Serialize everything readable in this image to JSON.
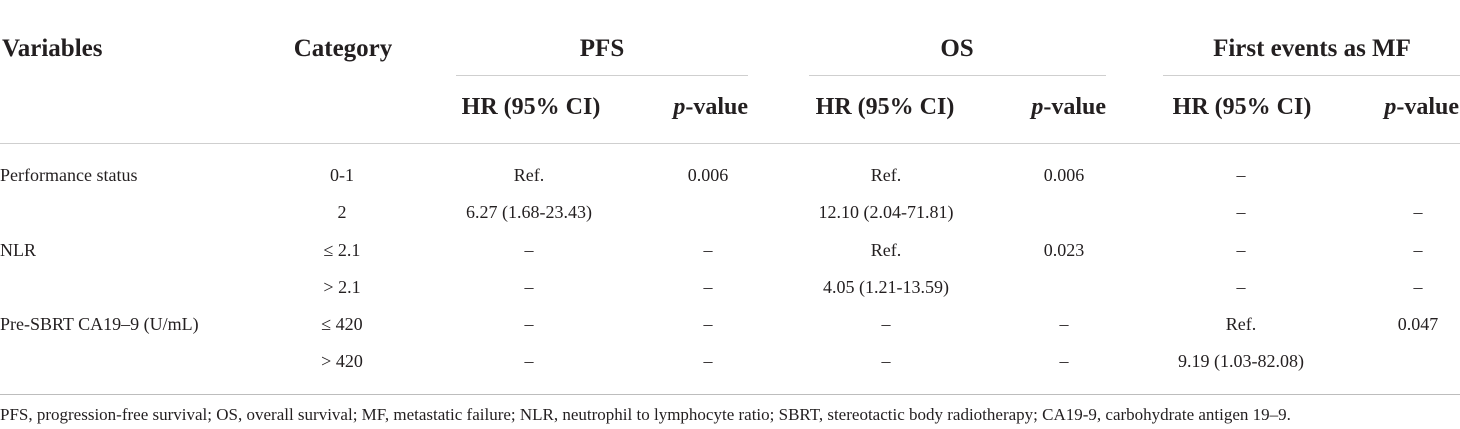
{
  "table": {
    "headers": {
      "variables": "Variables",
      "category": "Category",
      "pfs": "PFS",
      "os": "OS",
      "mf": "First events as MF"
    },
    "subheaders": {
      "hr": "HR (95% CI)",
      "p_italic": "p",
      "p_rest": "-value"
    },
    "rows": [
      {
        "variable": "Performance status",
        "category": "0-1",
        "pfs_hr": "Ref.",
        "pfs_p": "0.006",
        "os_hr": "Ref.",
        "os_p": "0.006",
        "mf_hr": "–",
        "mf_p": ""
      },
      {
        "variable": "",
        "category": "2",
        "pfs_hr": "6.27 (1.68-23.43)",
        "pfs_p": "",
        "os_hr": "12.10 (2.04-71.81)",
        "os_p": "",
        "mf_hr": "–",
        "mf_p": "–"
      },
      {
        "variable": "NLR",
        "category": "≤ 2.1",
        "pfs_hr": "–",
        "pfs_p": "–",
        "os_hr": "Ref.",
        "os_p": "0.023",
        "mf_hr": "–",
        "mf_p": "–"
      },
      {
        "variable": "",
        "category": "> 2.1",
        "pfs_hr": "–",
        "pfs_p": "–",
        "os_hr": "4.05 (1.21-13.59)",
        "os_p": "",
        "mf_hr": "–",
        "mf_p": "–"
      },
      {
        "variable": "Pre-SBRT CA19–9 (U/mL)",
        "category": "≤ 420",
        "pfs_hr": "–",
        "pfs_p": "–",
        "os_hr": "–",
        "os_p": "–",
        "mf_hr": "Ref.",
        "mf_p": "0.047"
      },
      {
        "variable": "",
        "category": "> 420",
        "pfs_hr": "–",
        "pfs_p": "–",
        "os_hr": "–",
        "os_p": "–",
        "mf_hr": "9.19 (1.03-82.08)",
        "mf_p": ""
      }
    ],
    "footnote": "PFS, progression-free survival; OS, overall survival; MF, metastatic failure; NLR, neutrophil to lymphocyte ratio; SBRT, stereotactic body radiotherapy; CA19-9, carbohydrate antigen 19–9."
  }
}
